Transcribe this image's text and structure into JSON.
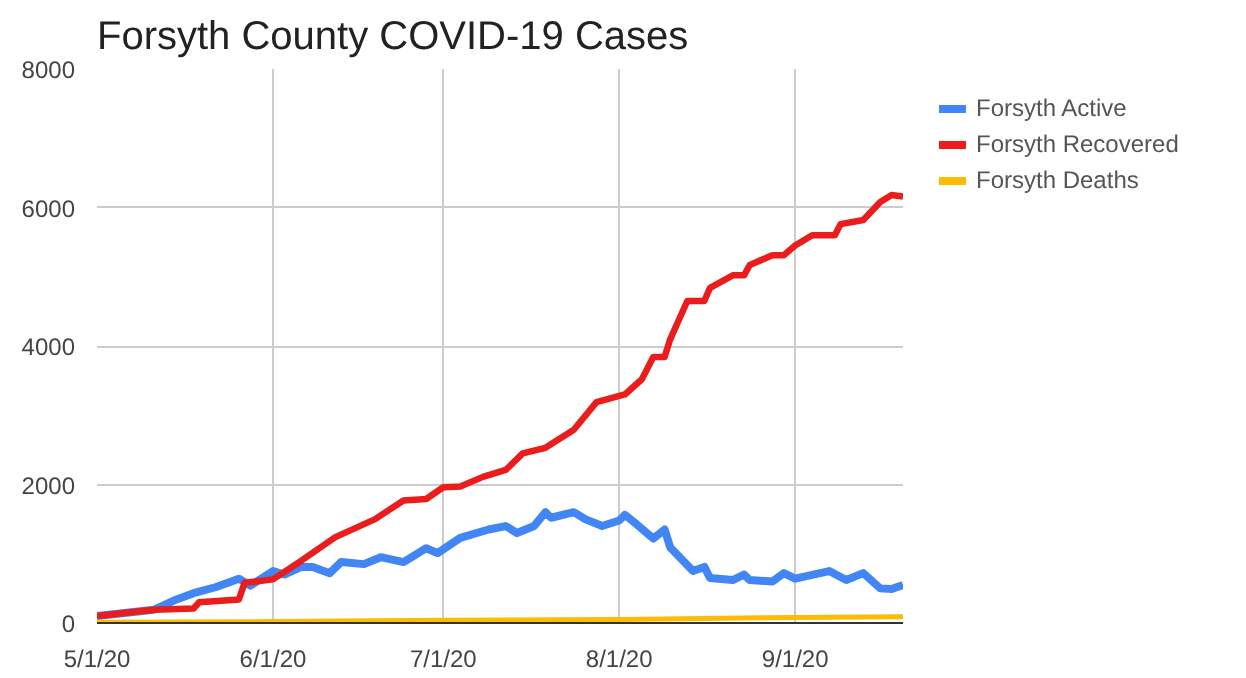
{
  "chart_data": {
    "type": "line",
    "title": "Forsyth County COVID-19 Cases",
    "xlim": [
      "2020-05-01",
      "2020-09-20"
    ],
    "xticks": [
      {
        "value": "2020-05-01",
        "label": "5/1/20"
      },
      {
        "value": "2020-06-01",
        "label": "6/1/20"
      },
      {
        "value": "2020-07-01",
        "label": "7/1/20"
      },
      {
        "value": "2020-08-01",
        "label": "8/1/20"
      },
      {
        "value": "2020-09-01",
        "label": "9/1/20"
      }
    ],
    "ylim": [
      0,
      8000
    ],
    "yticks": [
      0,
      2000,
      4000,
      6000,
      8000
    ],
    "grid": true,
    "legend": "right",
    "line_style": "solid",
    "marker": "none",
    "series": [
      {
        "name": "Forsyth Active",
        "color": "#4285f4",
        "x": [
          "2020-05-01",
          "2020-05-11",
          "2020-05-15",
          "2020-05-18",
          "2020-05-22",
          "2020-05-26",
          "2020-05-28",
          "2020-06-01",
          "2020-06-03",
          "2020-06-06",
          "2020-06-08",
          "2020-06-11",
          "2020-06-13",
          "2020-06-17",
          "2020-06-20",
          "2020-06-24",
          "2020-06-28",
          "2020-06-30",
          "2020-07-04",
          "2020-07-09",
          "2020-07-12",
          "2020-07-14",
          "2020-07-17",
          "2020-07-19",
          "2020-07-20",
          "2020-07-24",
          "2020-07-26",
          "2020-07-29",
          "2020-08-01",
          "2020-08-02",
          "2020-08-04",
          "2020-08-07",
          "2020-08-09",
          "2020-08-10",
          "2020-08-14",
          "2020-08-16",
          "2020-08-17",
          "2020-08-21",
          "2020-08-23",
          "2020-08-24",
          "2020-08-28",
          "2020-08-30",
          "2020-09-01",
          "2020-09-07",
          "2020-09-10",
          "2020-09-13",
          "2020-09-16",
          "2020-09-18",
          "2020-09-20"
        ],
        "values": [
          100,
          190,
          340,
          430,
          520,
          640,
          540,
          750,
          700,
          810,
          810,
          720,
          880,
          850,
          950,
          880,
          1080,
          1010,
          1230,
          1350,
          1400,
          1300,
          1400,
          1600,
          1520,
          1600,
          1500,
          1400,
          1480,
          1560,
          1430,
          1220,
          1350,
          1090,
          750,
          810,
          650,
          620,
          700,
          620,
          600,
          720,
          640,
          750,
          620,
          720,
          500,
          490,
          550
        ]
      },
      {
        "name": "Forsyth Recovered",
        "color": "#ea1c1c",
        "x": [
          "2020-05-01",
          "2020-05-11",
          "2020-05-18",
          "2020-05-19",
          "2020-05-26",
          "2020-05-27",
          "2020-06-01",
          "2020-06-06",
          "2020-06-12",
          "2020-06-19",
          "2020-06-24",
          "2020-06-28",
          "2020-07-01",
          "2020-07-04",
          "2020-07-08",
          "2020-07-12",
          "2020-07-15",
          "2020-07-19",
          "2020-07-24",
          "2020-07-28",
          "2020-08-02",
          "2020-08-05",
          "2020-08-07",
          "2020-08-09",
          "2020-08-10",
          "2020-08-13",
          "2020-08-16",
          "2020-08-17",
          "2020-08-21",
          "2020-08-23",
          "2020-08-24",
          "2020-08-28",
          "2020-08-30",
          "2020-09-01",
          "2020-09-04",
          "2020-09-08",
          "2020-09-09",
          "2020-09-13",
          "2020-09-16",
          "2020-09-18",
          "2020-09-20"
        ],
        "values": [
          100,
          190,
          210,
          300,
          340,
          580,
          630,
          900,
          1240,
          1500,
          1770,
          1790,
          1960,
          1970,
          2110,
          2210,
          2450,
          2530,
          2790,
          3190,
          3300,
          3520,
          3840,
          3840,
          4100,
          4650,
          4650,
          4840,
          5020,
          5020,
          5170,
          5310,
          5310,
          5450,
          5600,
          5600,
          5760,
          5820,
          6080,
          6180,
          6160
        ]
      },
      {
        "name": "Forsyth Deaths",
        "color": "#fbbc04",
        "x": [
          "2020-05-01",
          "2020-06-01",
          "2020-07-01",
          "2020-08-01",
          "2020-09-01",
          "2020-09-20"
        ],
        "values": [
          10,
          20,
          40,
          50,
          80,
          90
        ]
      }
    ]
  }
}
